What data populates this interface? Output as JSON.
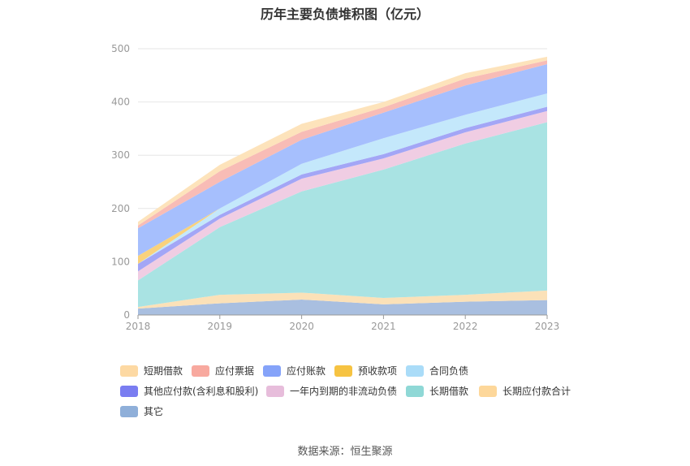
{
  "chart_data": {
    "type": "area",
    "title": "历年主要负债堆积图（亿元）",
    "x": [
      "2018",
      "2019",
      "2020",
      "2021",
      "2022",
      "2023"
    ],
    "ylim": [
      0,
      500
    ],
    "yticks": [
      "0",
      "100",
      "200",
      "300",
      "400",
      "500"
    ],
    "grid": true,
    "legend_position": "bottom",
    "series": [
      {
        "name": "其它",
        "color": "#a9bfe0",
        "values": [
          12,
          22,
          29,
          20,
          25,
          28
        ]
      },
      {
        "name": "长期应付款合计",
        "color": "#fbe1b8",
        "values": [
          3,
          16,
          13,
          12,
          13,
          18
        ]
      },
      {
        "name": "长期借款",
        "color": "#a9e3e3",
        "values": [
          50,
          127,
          190,
          241,
          284,
          316
        ]
      },
      {
        "name": "一年内到期的非流动负债",
        "color": "#f0cde3",
        "values": [
          17,
          16,
          24,
          21,
          21,
          21
        ]
      },
      {
        "name": "其他应付款(含利息和股利)",
        "color": "#a3a6f6",
        "values": [
          14,
          7,
          8,
          8,
          8,
          8
        ]
      },
      {
        "name": "合同负债",
        "color": "#c4e8fb",
        "values": [
          0,
          12,
          20,
          30,
          25,
          25
        ]
      },
      {
        "name": "预收款项",
        "color": "#f9d27c",
        "values": [
          15,
          0,
          0,
          0,
          0,
          0
        ]
      },
      {
        "name": "应付账款",
        "color": "#a6bffd",
        "values": [
          52,
          50,
          45,
          48,
          55,
          55
        ]
      },
      {
        "name": "应付票据",
        "color": "#f8bcb6",
        "values": [
          5,
          20,
          15,
          10,
          13,
          7
        ]
      },
      {
        "name": "短期借款",
        "color": "#fde3bb",
        "values": [
          7,
          12,
          15,
          10,
          10,
          7
        ]
      }
    ]
  },
  "legend_items": [
    {
      "name": "短期借款",
      "color": "#fdd9a3"
    },
    {
      "name": "应付票据",
      "color": "#f8a99f"
    },
    {
      "name": "应付账款",
      "color": "#85a3f9"
    },
    {
      "name": "预收款项",
      "color": "#f6c342"
    },
    {
      "name": "合同负债",
      "color": "#aadcf8"
    },
    {
      "name": "其他应付款(含利息和股利)",
      "color": "#7a7df1"
    },
    {
      "name": "一年内到期的非流动负债",
      "color": "#e7bddb"
    },
    {
      "name": "长期借款",
      "color": "#8fd8d6"
    },
    {
      "name": "长期应付款合计",
      "color": "#fdd79a"
    },
    {
      "name": "其它",
      "color": "#8fafd9"
    }
  ],
  "source": "数据来源：恒生聚源"
}
